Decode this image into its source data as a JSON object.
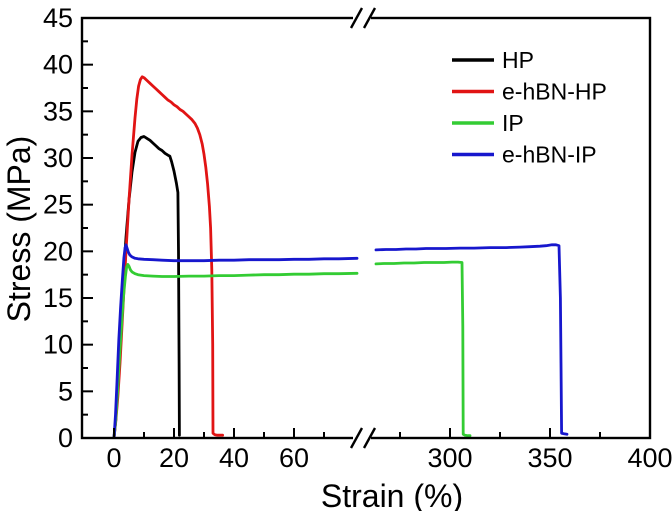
{
  "chart_data": {
    "type": "line",
    "title": "",
    "xlabel": "Strain (%)",
    "ylabel": "Stress (MPa)",
    "x_axis": {
      "broken": true,
      "break_between": [
        80,
        265
      ],
      "segments": [
        {
          "range": [
            0,
            80
          ],
          "major_ticks": [
            0,
            20,
            40,
            60
          ],
          "minor_ticks": [
            10,
            30,
            50,
            70
          ]
        },
        {
          "range": [
            265,
            400
          ],
          "major_ticks": [
            300,
            350,
            400
          ],
          "minor_ticks": [
            275,
            325,
            375
          ]
        }
      ]
    },
    "y_axis": {
      "range": [
        0,
        45
      ],
      "major_ticks": [
        0,
        5,
        10,
        15,
        20,
        25,
        30,
        35,
        40,
        45
      ],
      "minor_ticks": [
        2.5,
        7.5,
        12.5,
        17.5,
        22.5,
        27.5,
        32.5,
        37.5,
        42.5
      ],
      "grid": false
    },
    "legend": {
      "position": "top-right",
      "entries": [
        "HP",
        "e-hBN-HP",
        "IP",
        "e-hBN-IP"
      ]
    },
    "colors": {
      "HP": "#000000",
      "e-hBN-HP": "#e11414",
      "IP": "#33cc33",
      "e-hBN-IP": "#1717cd",
      "axis": "#000000",
      "background": "#ffffff"
    },
    "series": [
      {
        "name": "HP",
        "color": "#000000",
        "points": [
          [
            0,
            0
          ],
          [
            0.6,
            2
          ],
          [
            1.2,
            5.5
          ],
          [
            2,
            10.5
          ],
          [
            3,
            16.5
          ],
          [
            4,
            21.5
          ],
          [
            5,
            25.5
          ],
          [
            6,
            28.5
          ],
          [
            7,
            30.6
          ],
          [
            8,
            31.8
          ],
          [
            9,
            32.2
          ],
          [
            10,
            32.3
          ],
          [
            11,
            32.1
          ],
          [
            12,
            31.9
          ],
          [
            13,
            31.6
          ],
          [
            14,
            31.3
          ],
          [
            15,
            31.0
          ],
          [
            16,
            30.8
          ],
          [
            17,
            30.5
          ],
          [
            18,
            30.3
          ],
          [
            18.6,
            30.2
          ],
          [
            19.2,
            29.6
          ],
          [
            20,
            28.6
          ],
          [
            20.8,
            27.3
          ],
          [
            21.3,
            26.3
          ],
          [
            21.5,
            20
          ],
          [
            21.7,
            8
          ],
          [
            21.8,
            0.3
          ]
        ]
      },
      {
        "name": "e-hBN-HP",
        "color": "#e11414",
        "points": [
          [
            0,
            0
          ],
          [
            0.6,
            1.8
          ],
          [
            1.3,
            4.5
          ],
          [
            2,
            8
          ],
          [
            3,
            14
          ],
          [
            4,
            20
          ],
          [
            5,
            25.5
          ],
          [
            6,
            30.3
          ],
          [
            7,
            34.3
          ],
          [
            7.6,
            36.3
          ],
          [
            8.2,
            37.7
          ],
          [
            8.8,
            38.4
          ],
          [
            9.4,
            38.7
          ],
          [
            10,
            38.6
          ],
          [
            11,
            38.3
          ],
          [
            12,
            38.0
          ],
          [
            13,
            37.7
          ],
          [
            14,
            37.4
          ],
          [
            15,
            37.1
          ],
          [
            16,
            36.8
          ],
          [
            17,
            36.5
          ],
          [
            18,
            36.2
          ],
          [
            19,
            36.0
          ],
          [
            20,
            35.7
          ],
          [
            21,
            35.5
          ],
          [
            22,
            35.2
          ],
          [
            23,
            35.0
          ],
          [
            24,
            34.7
          ],
          [
            25,
            34.4
          ],
          [
            26,
            34.1
          ],
          [
            27,
            33.7
          ],
          [
            27.8,
            33.2
          ],
          [
            28.6,
            32.5
          ],
          [
            29.4,
            31.5
          ],
          [
            30,
            30.4
          ],
          [
            30.6,
            29
          ],
          [
            31.2,
            27.2
          ],
          [
            31.8,
            24.8
          ],
          [
            32.2,
            22.5
          ],
          [
            32.6,
            18
          ],
          [
            32.9,
            10
          ],
          [
            33,
            0.5
          ],
          [
            33.6,
            0.35
          ],
          [
            34.5,
            0.3
          ],
          [
            35.5,
            0.3
          ],
          [
            36.2,
            0.3
          ]
        ]
      },
      {
        "name": "IP",
        "color": "#33cc33",
        "points": [
          [
            0,
            0
          ],
          [
            0.6,
            2
          ],
          [
            1.2,
            5
          ],
          [
            2,
            9.5
          ],
          [
            2.6,
            12.5
          ],
          [
            3.2,
            15.3
          ],
          [
            3.8,
            17.3
          ],
          [
            4.2,
            18.3
          ],
          [
            4.6,
            18.6
          ],
          [
            5,
            18.4
          ],
          [
            5.5,
            18.0
          ],
          [
            6,
            17.8
          ],
          [
            7,
            17.6
          ],
          [
            8,
            17.5
          ],
          [
            10,
            17.4
          ],
          [
            13,
            17.35
          ],
          [
            16,
            17.3
          ],
          [
            20,
            17.3
          ],
          [
            25,
            17.35
          ],
          [
            30,
            17.35
          ],
          [
            35,
            17.4
          ],
          [
            40,
            17.4
          ],
          [
            45,
            17.45
          ],
          [
            50,
            17.5
          ],
          [
            55,
            17.5
          ],
          [
            60,
            17.55
          ],
          [
            65,
            17.55
          ],
          [
            70,
            17.6
          ],
          [
            75,
            17.6
          ],
          [
            81,
            17.65
          ],
          [
            263,
            18.65
          ],
          [
            267,
            18.7
          ],
          [
            272,
            18.7
          ],
          [
            277,
            18.75
          ],
          [
            282,
            18.75
          ],
          [
            287,
            18.8
          ],
          [
            292,
            18.8
          ],
          [
            297,
            18.8
          ],
          [
            301,
            18.85
          ],
          [
            304,
            18.85
          ],
          [
            306,
            18.8
          ],
          [
            306.4,
            12
          ],
          [
            306.6,
            0.4
          ],
          [
            307.5,
            0.3
          ],
          [
            309,
            0.25
          ],
          [
            310,
            0.25
          ]
        ]
      },
      {
        "name": "e-hBN-IP",
        "color": "#1717cd",
        "points": [
          [
            0,
            0
          ],
          [
            0.5,
            2.5
          ],
          [
            1,
            6
          ],
          [
            1.6,
            10.5
          ],
          [
            2.2,
            14
          ],
          [
            2.8,
            17
          ],
          [
            3.3,
            19.3
          ],
          [
            3.7,
            20.4
          ],
          [
            4,
            20.7
          ],
          [
            4.4,
            20.3
          ],
          [
            4.8,
            19.9
          ],
          [
            5.3,
            19.6
          ],
          [
            6,
            19.4
          ],
          [
            7,
            19.25
          ],
          [
            8,
            19.2
          ],
          [
            10,
            19.15
          ],
          [
            13,
            19.1
          ],
          [
            16,
            19.05
          ],
          [
            20,
            19.0
          ],
          [
            25,
            19.0
          ],
          [
            30,
            19.0
          ],
          [
            35,
            19.05
          ],
          [
            40,
            19.05
          ],
          [
            45,
            19.1
          ],
          [
            50,
            19.1
          ],
          [
            55,
            19.1
          ],
          [
            60,
            19.15
          ],
          [
            65,
            19.15
          ],
          [
            70,
            19.2
          ],
          [
            75,
            19.2
          ],
          [
            81,
            19.25
          ],
          [
            263,
            20.15
          ],
          [
            268,
            20.2
          ],
          [
            273,
            20.2
          ],
          [
            278,
            20.25
          ],
          [
            283,
            20.25
          ],
          [
            288,
            20.3
          ],
          [
            293,
            20.3
          ],
          [
            298,
            20.3
          ],
          [
            305,
            20.35
          ],
          [
            312,
            20.35
          ],
          [
            320,
            20.4
          ],
          [
            328,
            20.4
          ],
          [
            335,
            20.45
          ],
          [
            340,
            20.5
          ],
          [
            345,
            20.55
          ],
          [
            348,
            20.6
          ],
          [
            351,
            20.7
          ],
          [
            353,
            20.7
          ],
          [
            354.5,
            20.6
          ],
          [
            355.2,
            15
          ],
          [
            355.5,
            8
          ],
          [
            355.8,
            0.5
          ],
          [
            357,
            0.45
          ],
          [
            358.5,
            0.4
          ]
        ]
      }
    ]
  }
}
